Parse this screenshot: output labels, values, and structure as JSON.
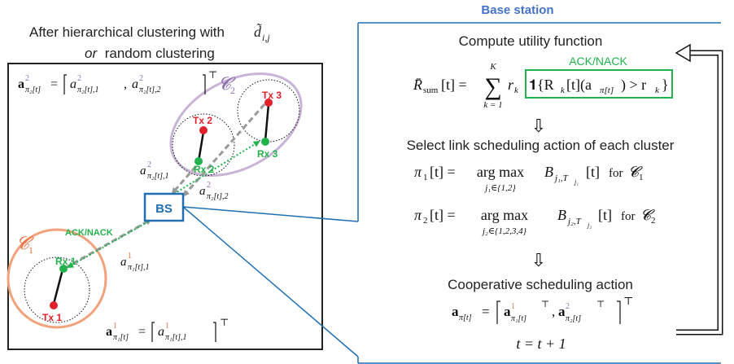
{
  "left_title": {
    "line1": "After hierarchical clustering with",
    "line1_symbol": "d̃",
    "line1_sub": "i,j",
    "line2_or": "or",
    "line2_rest": " random clustering"
  },
  "clusters": {
    "c1_label": "𝓒",
    "c1_sub": "1",
    "c2_label": "𝓒",
    "c2_sub": "2"
  },
  "nodes": {
    "tx1": "Tx 1",
    "rx1": "Rx 1",
    "tx2": "Tx 2",
    "rx2": "Rx 2",
    "tx3": "Tx 3",
    "rx3": "Rx 3",
    "bs": "BS"
  },
  "links": {
    "ack_nack": "ACK/NACK",
    "a1": "a",
    "a1_sup": "1",
    "a1_sub": "π₁[t],1",
    "a21": "a",
    "a21_sup": "2",
    "a21_sub": "π₂[t],1",
    "a22": "a",
    "a22_sup": "2",
    "a22_sub": "π₂[t],2"
  },
  "vectors": {
    "v2_lhs": "a",
    "v2_lhs_sup": "2",
    "v2_lhs_sub": "π₂[t]",
    "v2_eq": "=",
    "v2_e1": "a",
    "v2_e1_sup": "2",
    "v2_e1_sub": "π₂[t],1",
    "v2_sep": ",",
    "v2_e2": "a",
    "v2_e2_sup": "2",
    "v2_e2_sub": "π₂[t],2",
    "v2_T": "⊤",
    "v1_lhs": "a",
    "v1_lhs_sup": "1",
    "v1_lhs_sub": "π₁[t]",
    "v1_eq": "=",
    "v1_e1": "a",
    "v1_e1_sup": "1",
    "v1_e1_sub": "π₁[t],1",
    "v1_T": "⊤"
  },
  "base_station": {
    "title": "Base station",
    "step1": "Compute utility function",
    "ack_nack": "ACK/NACK",
    "eq1_lhs": "R̄",
    "eq1_lhs_sub": "sum",
    "eq1_t": "[t] =",
    "sum_top": "K",
    "sum_bottom": "k = 1",
    "sum_sym": "∑",
    "eq1_body": "r",
    "eq1_body_sub": "k",
    "eq1_indicator": "𝟏{R",
    "eq1_ind_sub": "k",
    "eq1_ind_rest": "[t](a",
    "eq1_ind_sub2": "π[t]",
    "eq1_ind_end": ") > r",
    "eq1_ind_sub3": "k",
    "eq1_close": "}",
    "arrow": "⇩",
    "step2": "Select link scheduling action of each cluster",
    "eq2_lhs": "π",
    "eq2_lhs_sub": "1",
    "eq2_mid": "[t] =",
    "argmax": "arg max",
    "eq2_under": "j₁∈{1,2}",
    "eq2_B": "B",
    "eq2_B_sub": "j₁,T",
    "eq2_B_subsub": "j₁",
    "eq2_t": "[t]",
    "for_text": "for",
    "eq2_c": "𝓒",
    "eq2_c_sub": "1",
    "eq3_lhs": "π",
    "eq3_lhs_sub": "2",
    "eq3_mid": "[t] =",
    "eq3_under": "j₂∈{1,2,3,4}",
    "eq3_B": "B",
    "eq3_B_sub": "j₂,T",
    "eq3_B_subsub": "j₂",
    "eq3_t": "[t]",
    "eq3_c": "𝓒",
    "eq3_c_sub": "2",
    "step3": "Cooperative scheduling action",
    "eq4_lhs": "a",
    "eq4_lhs_sub": "π[t]",
    "eq4_eq": "=",
    "eq4_e1": "a",
    "eq4_e1_sup": "1",
    "eq4_e1_sub": "π₁[t]",
    "eq4_T1": "⊤",
    "eq4_sep": ",",
    "eq4_e2": "a",
    "eq4_e2_sup": "2",
    "eq4_e2_sub": "π₂[t]",
    "eq4_T2": "⊤",
    "eq4_T": "⊤",
    "eq5": "t = t + 1"
  },
  "colors": {
    "blue": "#1f6fb2",
    "title_blue": "#4472c4",
    "green": "#22b24c",
    "red": "#e0202a",
    "orange": "#f2a27a",
    "orange_text": "#e9774a",
    "purple": "#c9b3d6",
    "purple_text": "#8b6fb0",
    "gray": "#999999"
  }
}
